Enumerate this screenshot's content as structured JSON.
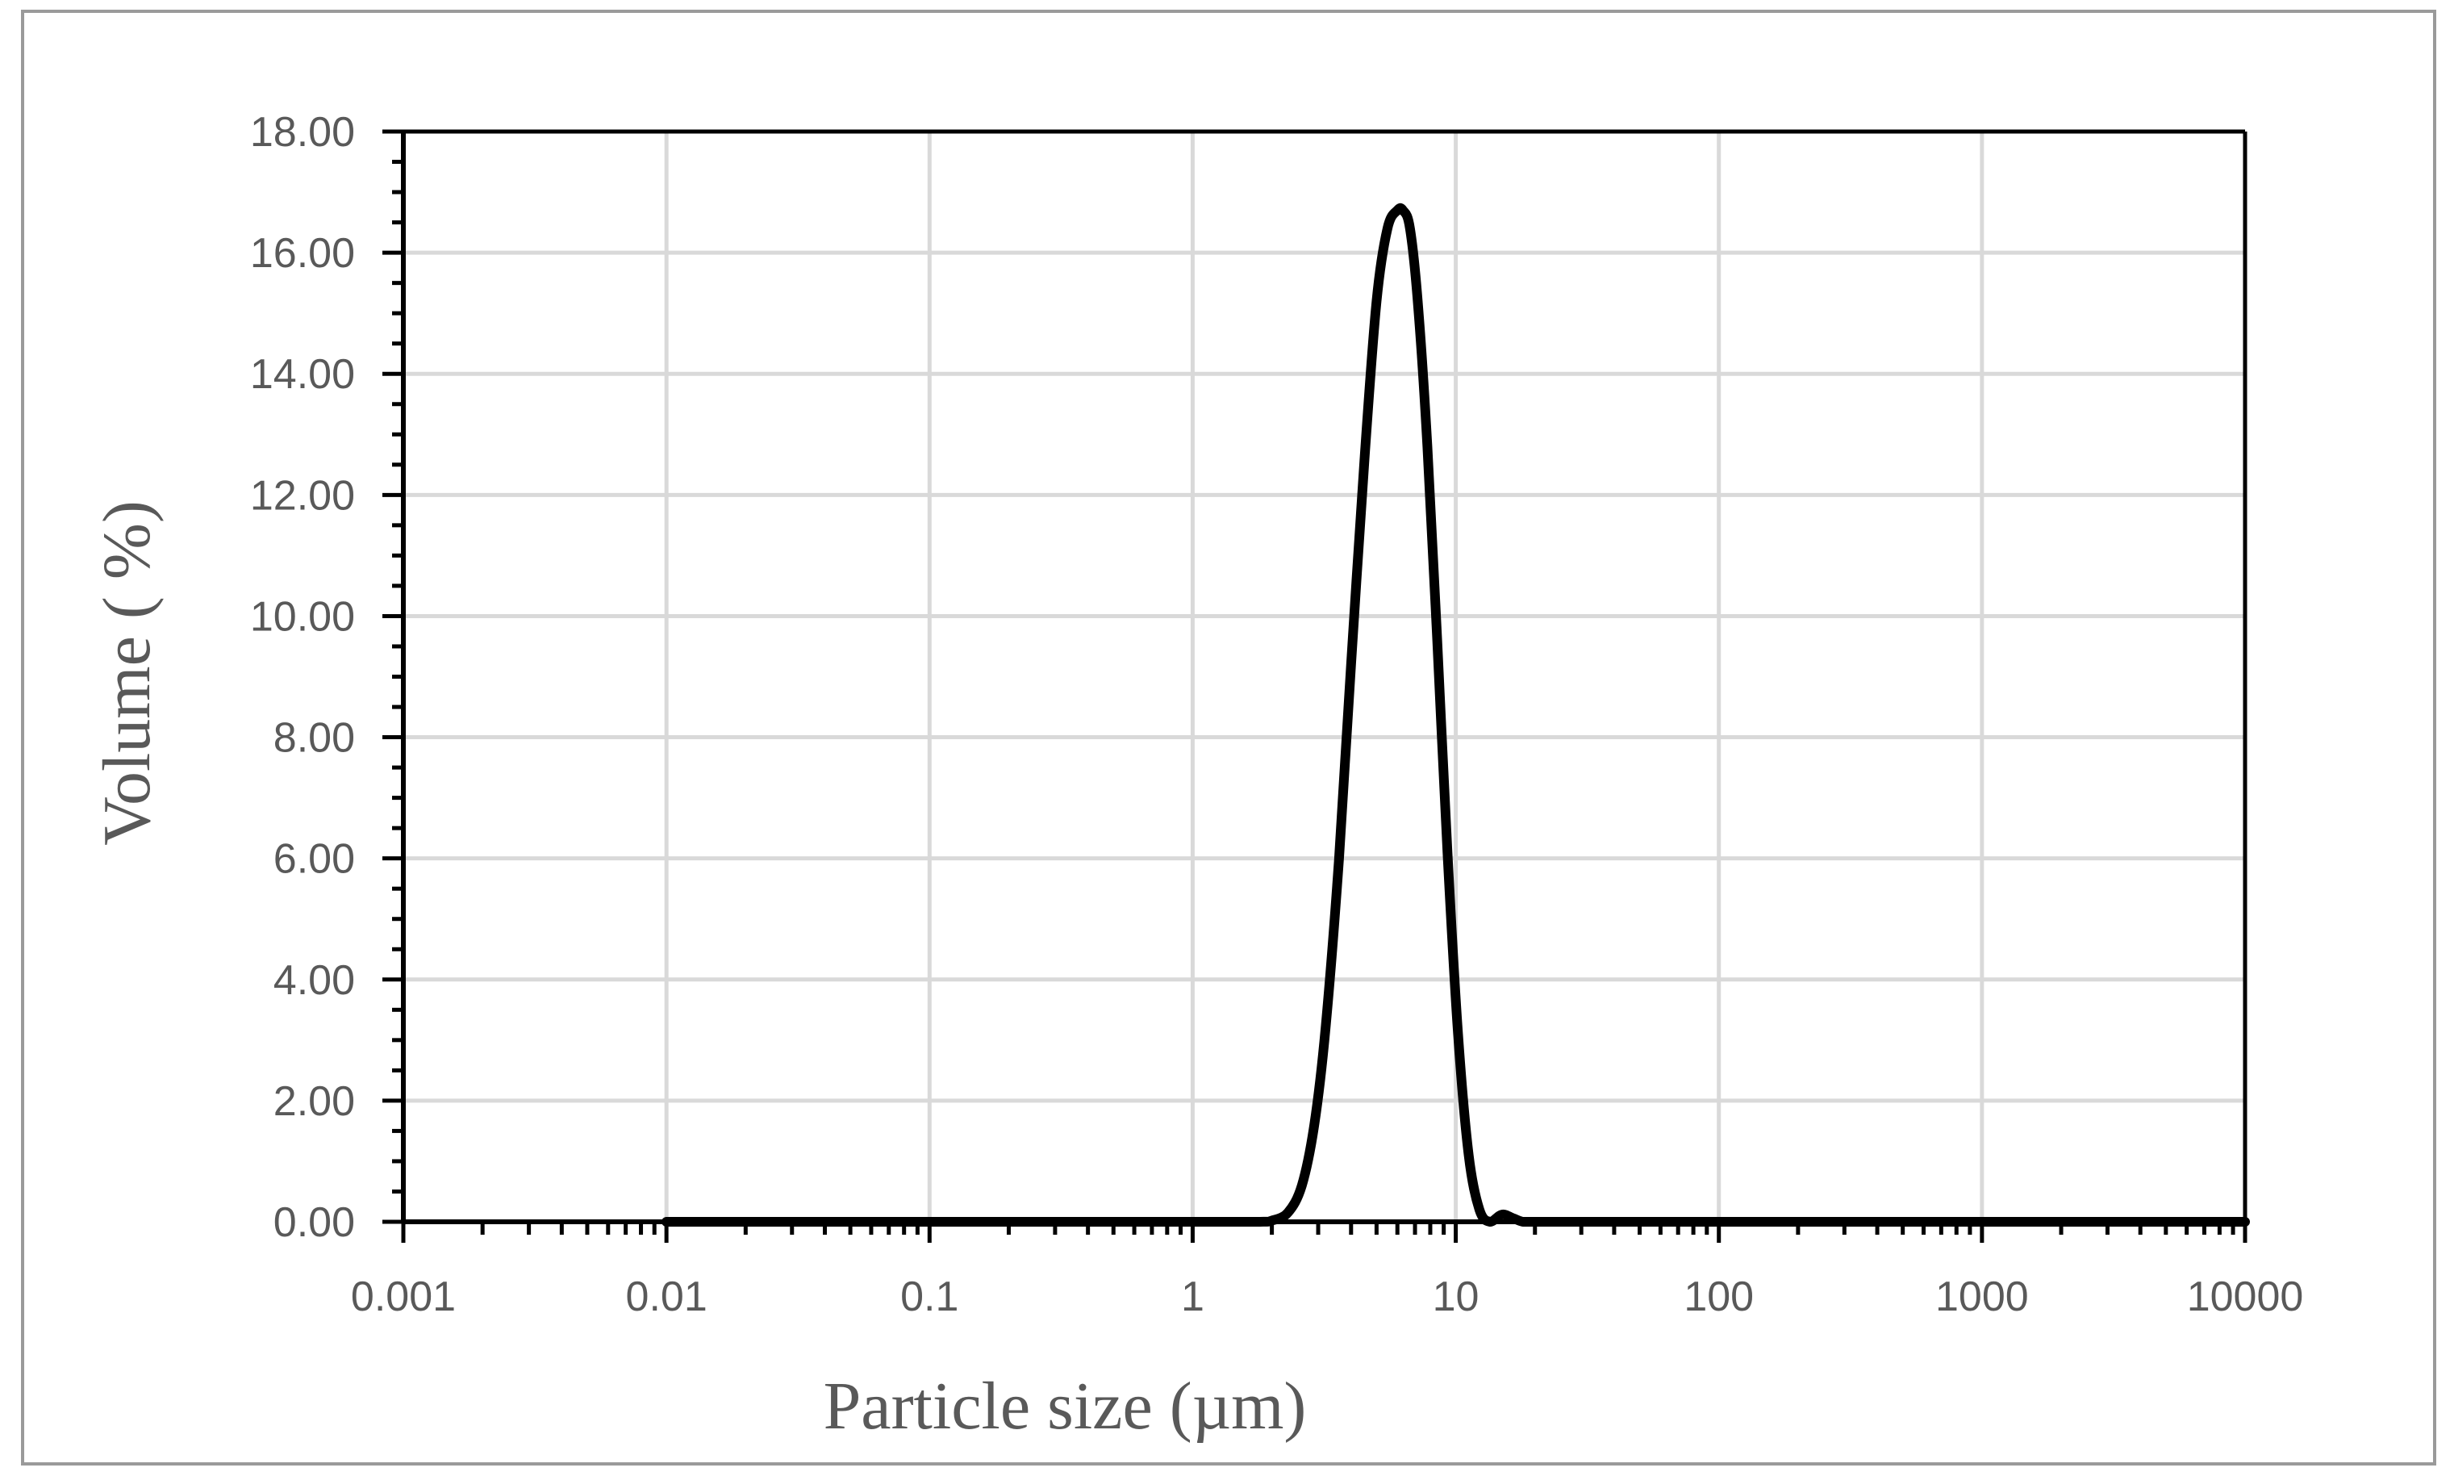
{
  "chart_data": {
    "type": "line",
    "title": "",
    "xlabel": "Particle size (µm)",
    "ylabel": "Volume ( %)",
    "x_scale": "log",
    "xlim": [
      0.001,
      10000
    ],
    "ylim": [
      0,
      18
    ],
    "x_ticks": [
      "0.001",
      "0.01",
      "0.1",
      "1",
      "10",
      "100",
      "1000",
      "10000"
    ],
    "y_ticks": [
      "0.00",
      "2.00",
      "4.00",
      "6.00",
      "8.00",
      "10.00",
      "12.00",
      "14.00",
      "16.00",
      "18.00"
    ],
    "grid": true,
    "legend": "none",
    "series": [
      {
        "color": "#000000",
        "x": [
          0.01,
          0.1,
          1,
          1.8,
          2.0,
          2.3,
          2.6,
          2.9,
          3.2,
          3.6,
          4.0,
          4.5,
          5.0,
          5.5,
          6.0,
          6.3,
          6.7,
          7.2,
          7.8,
          8.5,
          9.3,
          10.2,
          11.2,
          12.3,
          13.5,
          15.0,
          16.5,
          18.0,
          20,
          50,
          100,
          1000,
          10000
        ],
        "y": [
          0,
          0,
          0,
          0,
          0.02,
          0.15,
          0.6,
          1.6,
          3.2,
          6.0,
          9.2,
          12.6,
          15.2,
          16.4,
          16.7,
          16.7,
          16.4,
          15.1,
          12.8,
          9.6,
          6.1,
          3.1,
          1.1,
          0.2,
          0.0,
          0.12,
          0.06,
          0.0,
          0,
          0,
          0,
          0,
          0
        ]
      }
    ]
  }
}
